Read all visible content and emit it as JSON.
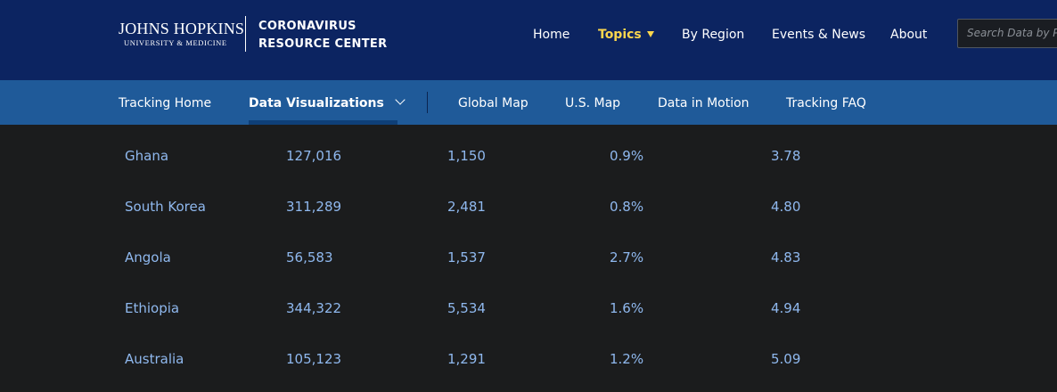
{
  "header": {
    "logo_line1": "JOHNS HOPKINS",
    "logo_line2": "UNIVERSITY & MEDICINE",
    "site_line1": "CORONAVIRUS",
    "site_line2": "RESOURCE CENTER",
    "nav": {
      "home": "Home",
      "topics": "Topics",
      "by_region": "By Region",
      "events_news": "Events & News",
      "about": "About"
    },
    "search": {
      "placeholder": "Search Data by P",
      "value": ""
    }
  },
  "subnav": {
    "tracking_home": "Tracking Home",
    "data_visualizations": "Data Visualizations",
    "global_map": "Global Map",
    "us_map": "U.S. Map",
    "data_in_motion": "Data in Motion",
    "tracking_faq": "Tracking FAQ"
  },
  "table": {
    "rows": [
      {
        "country": "Ghana",
        "c1": "127,016",
        "c2": "1,150",
        "c3": "0.9%",
        "c4": "3.78"
      },
      {
        "country": "South Korea",
        "c1": "311,289",
        "c2": "2,481",
        "c3": "0.8%",
        "c4": "4.80"
      },
      {
        "country": "Angola",
        "c1": "56,583",
        "c2": "1,537",
        "c3": "2.7%",
        "c4": "4.83"
      },
      {
        "country": "Ethiopia",
        "c1": "344,322",
        "c2": "5,534",
        "c3": "1.6%",
        "c4": "4.94"
      },
      {
        "country": "Australia",
        "c1": "105,123",
        "c2": "1,291",
        "c3": "1.2%",
        "c4": "5.09"
      }
    ]
  },
  "colors": {
    "header_bg": "#0c2461",
    "subnav_bg": "#1f5a99",
    "page_bg": "#1b1c1d",
    "accent_yellow": "#fcd64d",
    "link_blue": "#8fb8ee"
  }
}
